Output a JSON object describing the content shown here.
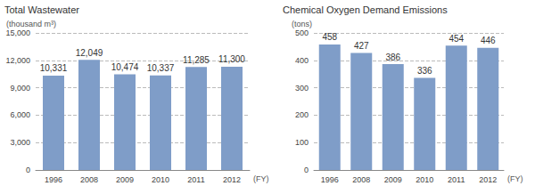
{
  "chart_data": [
    {
      "type": "bar",
      "title": "Total Wastewater",
      "ylabel": "(thousand m³)",
      "xlabel": "(FY)",
      "categories": [
        "1996",
        "2008",
        "2009",
        "2010",
        "2011",
        "2012"
      ],
      "values": [
        10331,
        12049,
        10474,
        10337,
        11285,
        11300
      ],
      "value_labels": [
        "10,331",
        "12,049",
        "10,474",
        "10,337",
        "11,285",
        "11,300"
      ],
      "color": "#7f9dc8",
      "ylim": [
        0,
        15000
      ],
      "yticks": [
        0,
        {
          "value": 3000,
          "label": "3,000"
        },
        {
          "value": 6000,
          "label": "6,000"
        },
        {
          "value": 9000,
          "label": "9,000"
        },
        {
          "value": 12000,
          "label": "12,000"
        },
        {
          "value": 15000,
          "label": "15,000"
        }
      ],
      "grid": true,
      "data_labels": true
    },
    {
      "type": "bar",
      "title": "Chemical Oxygen Demand Emissions",
      "ylabel": "(tons)",
      "xlabel": "(FY)",
      "categories": [
        "1996",
        "2008",
        "2009",
        "2010",
        "2011",
        "2012"
      ],
      "values": [
        458,
        427,
        386,
        336,
        454,
        446
      ],
      "color": "#7f9dc8",
      "ylim": [
        0,
        500
      ],
      "yticks": [
        0,
        100,
        200,
        300,
        400,
        500
      ],
      "grid": true,
      "data_labels": true
    }
  ]
}
